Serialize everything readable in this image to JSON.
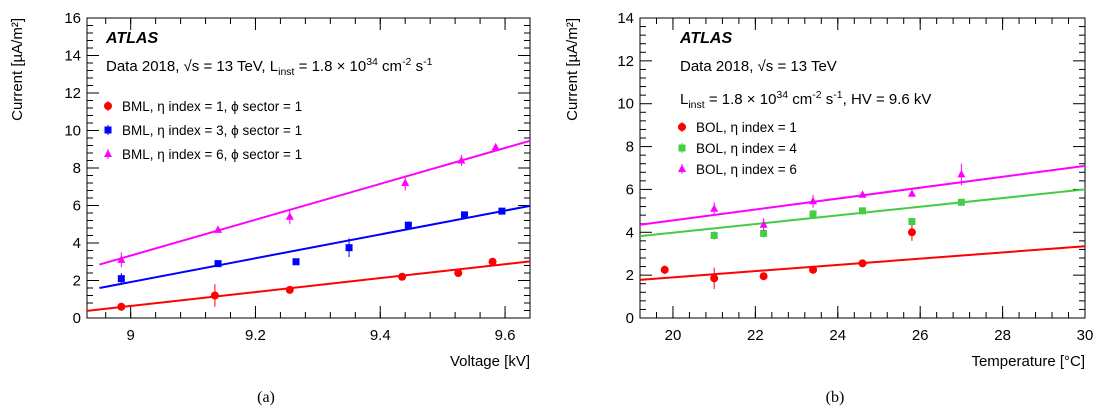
{
  "chart_data": [
    {
      "type": "scatter",
      "panel_label": "(a)",
      "experiment_label": "ATLAS",
      "info_lines": [
        "Data 2018, √s = 13 TeV, L_inst = 1.8 × 10^34 cm^-2 s^-1"
      ],
      "xlabel": "Voltage [kV]",
      "ylabel": "Current [µA/m²]",
      "xlim": [
        8.93,
        9.64
      ],
      "ylim": [
        0,
        16
      ],
      "xticks": [
        9,
        9.2,
        9.4,
        9.6
      ],
      "yticks": [
        0,
        2,
        4,
        6,
        8,
        10,
        12,
        14,
        16
      ],
      "grid": false,
      "legend_position": "top-left",
      "series": [
        {
          "name": "BML, η index = 1, ϕ sector = 1",
          "color": "#ff0000",
          "marker": "circle",
          "x": [
            8.985,
            9.135,
            9.255,
            9.435,
            9.525,
            9.58
          ],
          "y": [
            0.6,
            1.2,
            1.5,
            2.2,
            2.4,
            3.0
          ],
          "yerr": [
            0.1,
            0.6,
            0.1,
            0.1,
            0.1,
            0.1
          ],
          "fit": [
            [
              8.93,
              0.38
            ],
            [
              9.64,
              3.02
            ]
          ]
        },
        {
          "name": "BML, η index = 3, ϕ sector = 1",
          "color": "#0000ff",
          "marker": "square",
          "x": [
            8.985,
            9.14,
            9.265,
            9.35,
            9.445,
            9.535,
            9.595
          ],
          "y": [
            2.1,
            2.9,
            3.0,
            3.75,
            4.95,
            5.5,
            5.7
          ],
          "yerr": [
            0.3,
            0.1,
            0.1,
            0.5,
            0.2,
            0.1,
            0.1
          ],
          "fit": [
            [
              8.95,
              1.6
            ],
            [
              9.64,
              5.98
            ]
          ]
        },
        {
          "name": "BML, η index = 6, ϕ sector = 1",
          "color": "#ff00ff",
          "marker": "triangle",
          "x": [
            8.985,
            9.14,
            9.255,
            9.44,
            9.53,
            9.585
          ],
          "y": [
            3.1,
            4.7,
            5.4,
            7.2,
            8.4,
            9.1
          ],
          "yerr": [
            0.4,
            0.1,
            0.4,
            0.4,
            0.3,
            0.2
          ],
          "fit": [
            [
              8.95,
              2.85
            ],
            [
              9.64,
              9.45
            ]
          ]
        }
      ]
    },
    {
      "type": "scatter",
      "panel_label": "(b)",
      "experiment_label": "ATLAS",
      "info_lines": [
        "Data 2018, √s = 13 TeV",
        "L_inst = 1.8 × 10^34 cm^-2 s^-1, HV = 9.6 kV"
      ],
      "xlabel": "Temperature [°C]",
      "ylabel": "Current [µA/m²]",
      "xlim": [
        19.2,
        30
      ],
      "ylim": [
        0,
        14
      ],
      "xticks": [
        20,
        22,
        24,
        26,
        28,
        30
      ],
      "yticks": [
        0,
        2,
        4,
        6,
        8,
        10,
        12,
        14
      ],
      "grid": false,
      "legend_position": "top-left",
      "series": [
        {
          "name": "BOL, η index = 1",
          "color": "#ff0000",
          "marker": "circle",
          "x": [
            19.8,
            21.0,
            22.2,
            23.4,
            24.6,
            25.8
          ],
          "y": [
            2.25,
            1.85,
            1.95,
            2.25,
            2.55,
            4.0
          ],
          "yerr": [
            0.2,
            0.5,
            0.1,
            0.1,
            0.1,
            0.4
          ],
          "fit": [
            [
              19.2,
              1.78
            ],
            [
              30,
              3.35
            ]
          ]
        },
        {
          "name": "BOL, η index = 4",
          "color": "#44cc44",
          "marker": "square",
          "x": [
            21.0,
            22.2,
            23.4,
            24.6,
            25.8,
            27.0
          ],
          "y": [
            3.85,
            3.95,
            4.85,
            5.0,
            4.5,
            5.4
          ],
          "yerr": [
            0.2,
            0.2,
            0.2,
            0.1,
            0.1,
            0.1
          ],
          "fit": [
            [
              19.2,
              3.82
            ],
            [
              30,
              6.0
            ]
          ]
        },
        {
          "name": "BOL, η index = 6",
          "color": "#ff00ff",
          "marker": "triangle",
          "x": [
            21.0,
            22.2,
            23.4,
            24.6,
            25.8,
            27.0
          ],
          "y": [
            5.1,
            4.35,
            5.45,
            5.75,
            5.8,
            6.7
          ],
          "yerr": [
            0.3,
            0.3,
            0.3,
            0.1,
            0.1,
            0.5
          ],
          "fit": [
            [
              19.2,
              4.35
            ],
            [
              30,
              7.1
            ]
          ]
        }
      ]
    }
  ]
}
